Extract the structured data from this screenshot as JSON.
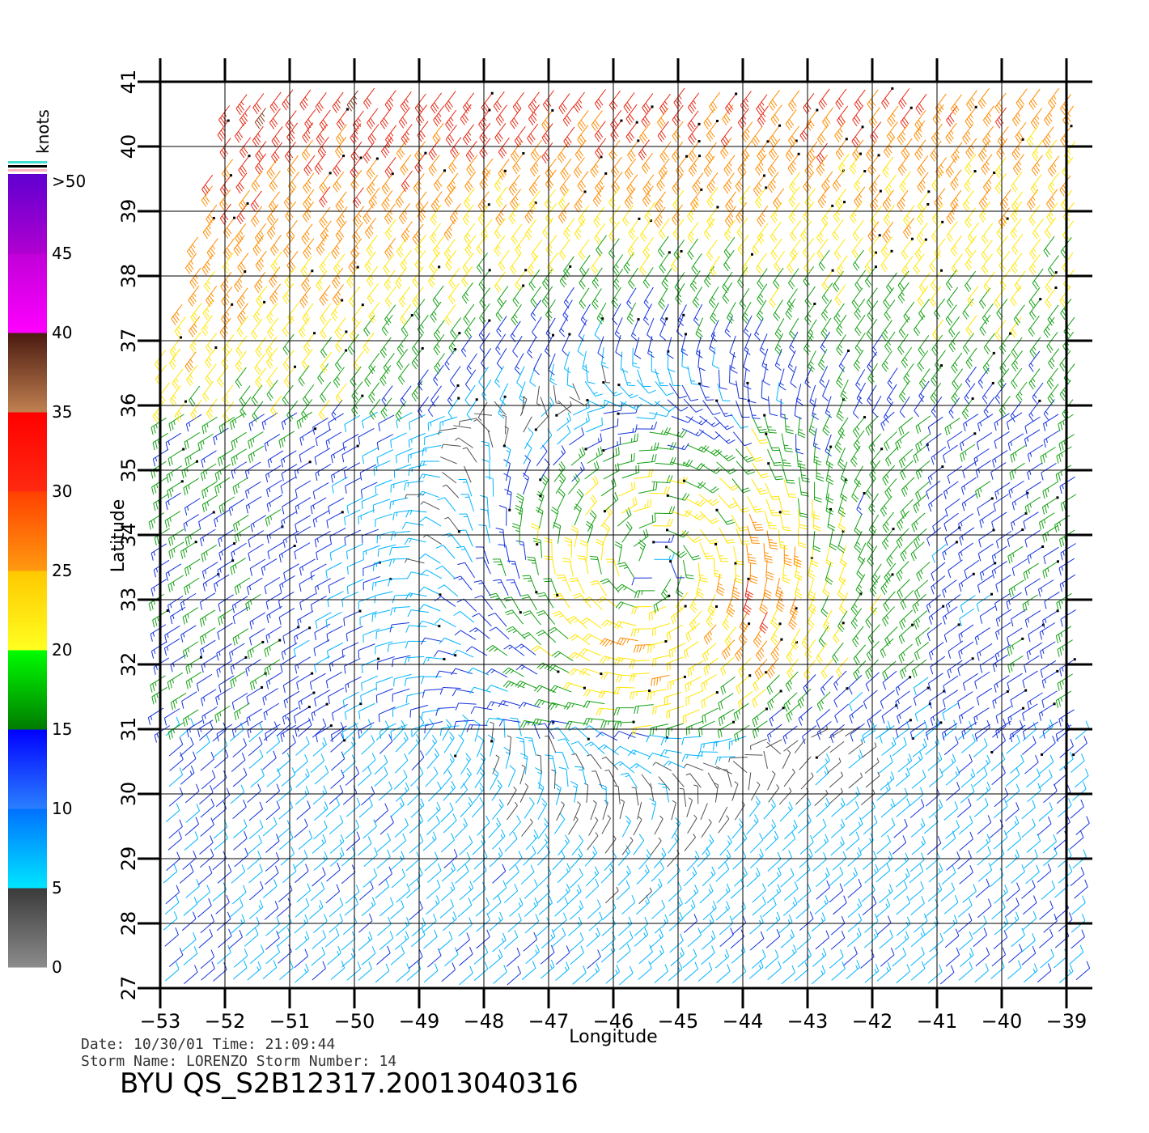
{
  "map": {
    "lon_ticks": [
      "−53",
      "−52",
      "−51",
      "−50",
      "−49",
      "−48",
      "−47",
      "−46",
      "−45",
      "−44",
      "−43",
      "−42",
      "−41",
      "−40",
      "−39"
    ],
    "lat_ticks": [
      "27",
      "28",
      "29",
      "30",
      "31",
      "32",
      "33",
      "34",
      "35",
      "36",
      "37",
      "38",
      "39",
      "40",
      "41"
    ],
    "x_label": "Longitude",
    "y_label": "Latitude",
    "lon_range": [
      -53,
      -39
    ],
    "lat_range": [
      27,
      41
    ],
    "grid": true,
    "storm_center": {
      "lon": -45.4,
      "lat": 33.5
    }
  },
  "legend": {
    "title": "knots",
    "labels": [
      "0",
      "5",
      "10",
      "15",
      "20",
      "25",
      "30",
      "35",
      "40",
      "45",
      ">50"
    ],
    "bands": [
      {
        "label": "0–5",
        "top": "#3a3a3a",
        "bottom": "#8c8c8c"
      },
      {
        "label": "5–10",
        "top": "#0070ff",
        "bottom": "#00e6ff"
      },
      {
        "label": "10–15",
        "top": "#0000ff",
        "bottom": "#2a80ff"
      },
      {
        "label": "15–20",
        "top": "#00ff00",
        "bottom": "#007a00"
      },
      {
        "label": "20–25",
        "top": "#ffc800",
        "bottom": "#ffff20"
      },
      {
        "label": "25–30",
        "top": "#ff4000",
        "bottom": "#ff9a10"
      },
      {
        "label": "30–35",
        "top": "#ff0000",
        "bottom": "#ff2a10"
      },
      {
        "label": "35–40",
        "top": "#4a1a10",
        "bottom": "#c08050"
      },
      {
        "label": "40–45",
        "top": "#c000d8",
        "bottom": "#ff00ff"
      },
      {
        "label": "45–50",
        "top": "#6000d0",
        "bottom": "#b000d0"
      }
    ]
  },
  "footer": {
    "date_line": "Date: 10/30/01   Time: 21:09:44",
    "storm_line": "Storm Name: LORENZO   Storm Number: 14",
    "product": "BYU QS_S2B12317.20013040316"
  },
  "colors": {
    "speed_0_5": "#505050",
    "speed_5_10": "#00b4ff",
    "speed_10_15": "#1432dc",
    "speed_15_20": "#14a014",
    "speed_20_25": "#ffe600",
    "speed_25_30": "#ff8c00",
    "speed_30_35": "#e62814",
    "speed_35_40": "#8b3a1e",
    "speed_40_45": "#e600e6",
    "speed_45_50": "#8000d0"
  }
}
